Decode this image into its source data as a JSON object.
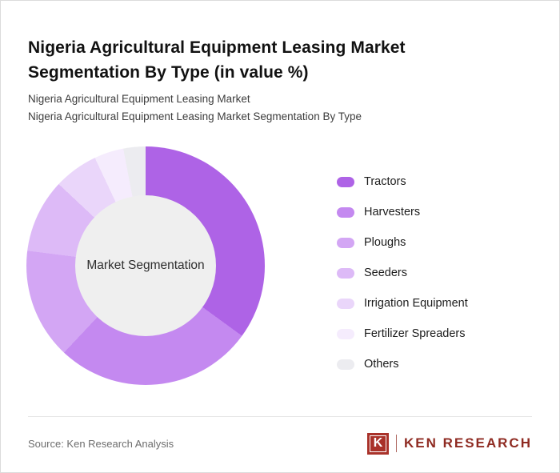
{
  "title": "Nigeria Agricultural Equipment Leasing Market Segmentation By Type (in value %)",
  "subtitles": {
    "line1": "Nigeria Agricultural Equipment Leasing Market",
    "line2": "Nigeria Agricultural Equipment Leasing Market Segmentation By Type"
  },
  "chart_data": {
    "type": "pie",
    "variant": "donut",
    "title": "Nigeria Agricultural Equipment Leasing Market Segmentation By Type (in value %)",
    "center_label": "Market Segmentation",
    "legend_position": "right",
    "categories": [
      "Tractors",
      "Harvesters",
      "Ploughs",
      "Seeders",
      "Irrigation Equipment",
      "Fertilizer Spreaders",
      "Others"
    ],
    "values": [
      35,
      27,
      15,
      10,
      6,
      4,
      3
    ],
    "colors": [
      "#ae63e6",
      "#c489f0",
      "#d3a6f4",
      "#ddbaf7",
      "#ead6fa",
      "#f5ecfd",
      "#ececf0"
    ],
    "center_fill": "#efefef"
  },
  "footer": {
    "source": "Source: Ken Research Analysis",
    "logo_letter": "K",
    "logo_text": "KEN RESEARCH",
    "logo_color": "#a9322a"
  }
}
